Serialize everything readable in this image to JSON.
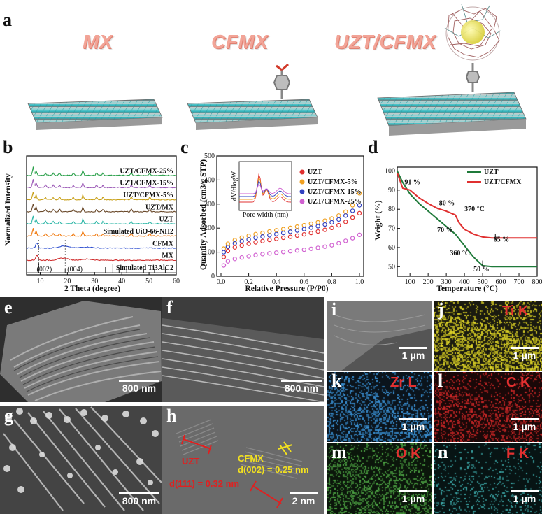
{
  "panel_a": {
    "label": "a",
    "titles": [
      "MX",
      "CFMX",
      "UZT/CFMX"
    ]
  },
  "panel_b": {
    "label": "b",
    "xlabel": "2 Theta (degree)",
    "ylabel": "Normalized Intensity",
    "xticks": [
      "10",
      "20",
      "30",
      "40",
      "50",
      "60"
    ],
    "curve_labels": [
      "UZT/CFMX-25%",
      "UZT/CFMX-15%",
      "UZT/CFMX-5%",
      "UZT/MX",
      "UZT",
      "Simulated UiO-66-NH2",
      "CFMX",
      "MX",
      "Simulated Ti3AlC2"
    ],
    "peak_labels": [
      "(002)",
      "(004)"
    ],
    "colors": [
      "#2aa04a",
      "#9b59b6",
      "#c8a018",
      "#6b4a2b",
      "#30b8a8",
      "#f07a10",
      "#3050d0",
      "#d03030",
      "#222222"
    ]
  },
  "panel_c": {
    "label": "c",
    "xlabel": "Relative Pressure (P/P0)",
    "ylabel": "Quantity Adsorbed (cm3/g STP)",
    "yticks": [
      "0",
      "100",
      "200",
      "300",
      "400",
      "500"
    ],
    "xticks": [
      "0.0",
      "0.2",
      "0.4",
      "0.6",
      "0.8",
      "1.0"
    ],
    "legend": [
      "UZT",
      "UZT/CFMX-5%",
      "UZT/CFMX-15%",
      "UZT/CFMX-25%"
    ],
    "colors": [
      "#e03030",
      "#f0a020",
      "#3040c0",
      "#d060d0"
    ],
    "inset": {
      "xlabel": "Pore width (nm)",
      "ylabel": "dV/dlogW"
    }
  },
  "panel_d": {
    "label": "d",
    "xlabel": "Temperature (°C)",
    "ylabel": "Weight (%)",
    "yticks": [
      "50",
      "60",
      "70",
      "80",
      "90",
      "100"
    ],
    "xticks": [
      "100",
      "200",
      "300",
      "400",
      "500",
      "600",
      "700",
      "800"
    ],
    "legend": [
      "UZT",
      "UZT/CFMX"
    ],
    "colors": [
      "#1f7a3a",
      "#e03030"
    ],
    "annotations": [
      "91 %",
      "80 %",
      "370 °C",
      "70 %",
      "65 %",
      "360 °C",
      "50 %"
    ]
  },
  "micrographs": {
    "e": {
      "label": "e",
      "scale": "800 nm"
    },
    "f": {
      "label": "f",
      "scale": "800 nm"
    },
    "g": {
      "label": "g",
      "scale": "800 nm"
    },
    "h": {
      "label": "h",
      "scale": "2 nm",
      "uzt": "UZT",
      "cfmx": "CFMX",
      "cfmx_d": "d(002) = 0.25 nm",
      "uzt_d": "d(111) = 0.32 nm"
    },
    "i": {
      "label": "i",
      "scale": "1 μm"
    },
    "j": {
      "label": "j",
      "element": "Ti K",
      "scale": "1 μm"
    },
    "k": {
      "label": "k",
      "element": "Zr L",
      "scale": "1 μm"
    },
    "l": {
      "label": "l",
      "element": "C K",
      "scale": "1 μm"
    },
    "m": {
      "label": "m",
      "element": "O K",
      "scale": "1 μm"
    },
    "n": {
      "label": "n",
      "element": "F K",
      "scale": "1 μm"
    }
  },
  "chart_data": [
    {
      "type": "line",
      "title": "",
      "xlabel": "2 Theta (degree)",
      "ylabel": "Normalized Intensity",
      "xlim": [
        5,
        60
      ],
      "series": [
        {
          "name": "UZT/CFMX-25%"
        },
        {
          "name": "UZT/CFMX-15%"
        },
        {
          "name": "UZT/CFMX-5%"
        },
        {
          "name": "UZT/MX"
        },
        {
          "name": "UZT"
        },
        {
          "name": "Simulated UiO-66-NH2"
        },
        {
          "name": "CFMX"
        },
        {
          "name": "MX"
        },
        {
          "name": "Simulated Ti3AlC2"
        }
      ]
    },
    {
      "type": "scatter",
      "xlabel": "Relative Pressure (P/P0)",
      "ylabel": "Quantity Adsorbed (cm3/g STP)",
      "xlim": [
        0,
        1.0
      ],
      "ylim": [
        0,
        500
      ],
      "x": [
        0.02,
        0.05,
        0.1,
        0.15,
        0.2,
        0.25,
        0.3,
        0.35,
        0.4,
        0.45,
        0.5,
        0.55,
        0.6,
        0.65,
        0.7,
        0.75,
        0.8,
        0.85,
        0.9,
        0.95,
        1.0
      ],
      "series": [
        {
          "name": "UZT/CFMX-5%",
          "values": [
            115,
            135,
            150,
            160,
            168,
            175,
            180,
            186,
            191,
            196,
            201,
            206,
            212,
            218,
            224,
            231,
            240,
            252,
            268,
            295,
            345
          ]
        },
        {
          "name": "UZT/CFMX-15%",
          "values": [
            100,
            122,
            137,
            146,
            153,
            160,
            165,
            170,
            175,
            180,
            185,
            190,
            196,
            202,
            208,
            215,
            224,
            236,
            252,
            272,
            295
          ]
        },
        {
          "name": "UZT",
          "values": [
            80,
            105,
            120,
            128,
            135,
            141,
            146,
            151,
            155,
            160,
            164,
            169,
            174,
            180,
            186,
            193,
            201,
            212,
            226,
            244,
            262
          ]
        },
        {
          "name": "UZT/CFMX-25%",
          "values": [
            45,
            62,
            72,
            78,
            83,
            88,
            92,
            95,
            98,
            101,
            104,
            107,
            110,
            114,
            118,
            123,
            129,
            137,
            147,
            158,
            172
          ]
        }
      ]
    },
    {
      "type": "line",
      "xlabel": "Temperature (°C)",
      "ylabel": "Weight (%)",
      "xlim": [
        30,
        800
      ],
      "ylim": [
        45,
        102
      ],
      "series": [
        {
          "name": "UZT",
          "x": [
            30,
            60,
            100,
            150,
            200,
            250,
            300,
            350,
            400,
            450,
            500,
            550,
            600,
            700,
            800
          ],
          "values": [
            100,
            94,
            88,
            83,
            79,
            75,
            71,
            67,
            61,
            55,
            50.5,
            50,
            50,
            50,
            50
          ]
        },
        {
          "name": "UZT/CFMX",
          "x": [
            30,
            60,
            100,
            150,
            200,
            250,
            300,
            350,
            370,
            400,
            450,
            500,
            550,
            600,
            700,
            800
          ],
          "values": [
            99,
            91,
            90,
            86,
            83,
            80.5,
            79,
            77,
            73,
            69.5,
            67,
            65.5,
            65,
            65,
            65,
            65
          ]
        }
      ]
    }
  ]
}
